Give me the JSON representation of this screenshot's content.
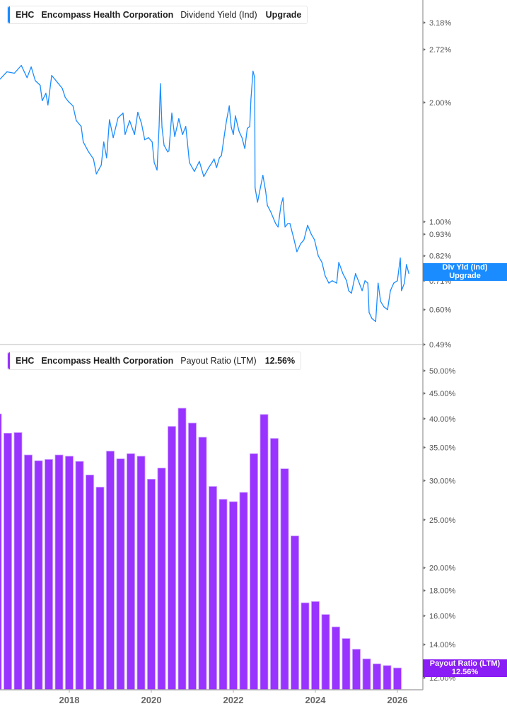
{
  "colors": {
    "dividend_yield": "#1a8cff",
    "payout_ratio": "#9933ff",
    "payout_tag": "#8a1cf5"
  },
  "top_legend": {
    "ticker": "EHC",
    "company": "Encompass Health Corporation",
    "metric": "Dividend Yield (Ind)",
    "value": "Upgrade"
  },
  "top_tag": {
    "line1": "Div Yld (Ind)",
    "line2": "Upgrade"
  },
  "bottom_legend": {
    "ticker": "EHC",
    "company": "Encompass Health Corporation",
    "metric": "Payout Ratio (LTM)",
    "value": "12.56%"
  },
  "bottom_tag": {
    "line1": "Payout Ratio (LTM)",
    "line2": "12.56%"
  },
  "chart_data": [
    {
      "type": "line",
      "series": [
        {
          "name": "Dividend Yield (Ind)",
          "x": [
            2016.31,
            2016.48,
            2016.66,
            2016.83,
            2016.97,
            2017.07,
            2017.17,
            2017.29,
            2017.34,
            2017.43,
            2017.48,
            2017.57,
            2017.72,
            2017.83,
            2017.9,
            2017.98,
            2018.09,
            2018.17,
            2018.29,
            2018.34,
            2018.47,
            2018.59,
            2018.66,
            2018.78,
            2018.84,
            2018.91,
            2018.98,
            2019.07,
            2019.19,
            2019.31,
            2019.36,
            2019.47,
            2019.59,
            2019.67,
            2019.76,
            2019.84,
            2019.93,
            2020.02,
            2020.07,
            2020.14,
            2020.19,
            2020.22,
            2020.26,
            2020.31,
            2020.4,
            2020.43,
            2020.5,
            2020.57,
            2020.67,
            2020.76,
            2020.84,
            2020.88,
            2020.93,
            2021.05,
            2021.17,
            2021.28,
            2021.4,
            2021.48,
            2021.53,
            2021.59,
            2021.66,
            2021.71,
            2021.78,
            2021.83,
            2021.9,
            2021.95,
            2022.0,
            2022.05,
            2022.14,
            2022.21,
            2022.28,
            2022.34,
            2022.4,
            2022.43,
            2022.48,
            2022.52,
            2022.53,
            2022.59,
            2022.66,
            2022.72,
            2022.79,
            2022.83,
            2022.91,
            2023.03,
            2023.09,
            2023.16,
            2023.21,
            2023.26,
            2023.33,
            2023.38,
            2023.47,
            2023.55,
            2023.64,
            2023.72,
            2023.81,
            2023.9,
            2023.98,
            2024.07,
            2024.16,
            2024.24,
            2024.33,
            2024.41,
            2024.52,
            2024.57,
            2024.67,
            2024.76,
            2024.81,
            2024.88,
            2024.98,
            2025.07,
            2025.14,
            2025.21,
            2025.28,
            2025.31,
            2025.38,
            2025.47,
            2025.53,
            2025.59,
            2025.67,
            2025.76,
            2025.83,
            2025.91,
            2026.0,
            2026.07,
            2026.1,
            2026.17,
            2026.22,
            2026.28
          ],
          "y": [
            2.29,
            2.39,
            2.37,
            2.48,
            2.31,
            2.46,
            2.27,
            2.21,
            2.02,
            2.11,
            1.97,
            2.34,
            2.24,
            2.17,
            2.06,
            2.01,
            1.96,
            1.8,
            1.74,
            1.59,
            1.5,
            1.44,
            1.32,
            1.39,
            1.59,
            1.45,
            1.81,
            1.63,
            1.83,
            1.88,
            1.66,
            1.8,
            1.66,
            1.89,
            1.77,
            1.61,
            1.63,
            1.59,
            1.41,
            1.35,
            1.74,
            2.23,
            1.73,
            1.56,
            1.5,
            1.51,
            1.88,
            1.64,
            1.82,
            1.66,
            1.74,
            1.59,
            1.41,
            1.34,
            1.42,
            1.3,
            1.37,
            1.41,
            1.44,
            1.37,
            1.45,
            1.47,
            1.65,
            1.79,
            1.96,
            1.73,
            1.66,
            1.85,
            1.69,
            1.63,
            1.53,
            1.72,
            1.74,
            2.04,
            2.4,
            2.31,
            1.22,
            1.12,
            1.22,
            1.31,
            1.19,
            1.1,
            1.06,
            0.99,
            0.97,
            1.1,
            1.15,
            0.97,
            0.99,
            0.99,
            0.91,
            0.84,
            0.88,
            0.9,
            0.98,
            0.93,
            0.9,
            0.82,
            0.79,
            0.73,
            0.7,
            0.71,
            0.7,
            0.79,
            0.74,
            0.71,
            0.67,
            0.66,
            0.74,
            0.7,
            0.67,
            0.71,
            0.7,
            0.59,
            0.57,
            0.56,
            0.7,
            0.63,
            0.61,
            0.6,
            0.67,
            0.7,
            0.71,
            0.81,
            0.67,
            0.7,
            0.78,
            0.74
          ]
        }
      ],
      "yscale": "log",
      "ylim": [
        0.49,
        3.18
      ],
      "yticks": [
        "3.18%",
        "2.72%",
        "2.00%",
        "1.00%",
        "0.93%",
        "0.82%",
        "0.71%",
        "0.60%",
        "0.49%"
      ],
      "ytick_values": [
        3.18,
        2.72,
        2.0,
        1.0,
        0.93,
        0.82,
        0.71,
        0.6,
        0.49
      ],
      "y_axis_side": "right",
      "grid": false
    },
    {
      "type": "bar",
      "series": [
        {
          "name": "Payout Ratio (LTM)",
          "x": [
            2016.25,
            2016.5,
            2016.75,
            2017.0,
            2017.25,
            2017.5,
            2017.75,
            2018.0,
            2018.25,
            2018.5,
            2018.75,
            2019.0,
            2019.25,
            2019.5,
            2019.75,
            2020.0,
            2020.25,
            2020.5,
            2020.75,
            2021.0,
            2021.25,
            2021.5,
            2021.75,
            2022.0,
            2022.25,
            2022.5,
            2022.75,
            2023.0,
            2023.25,
            2023.5,
            2023.75,
            2024.0,
            2024.25,
            2024.5,
            2024.75,
            2025.0,
            2025.25,
            2025.5,
            2025.75,
            2026.0
          ],
          "values": [
            40.9,
            37.4,
            37.5,
            33.8,
            32.9,
            33.1,
            33.8,
            33.6,
            32.8,
            30.8,
            29.1,
            34.4,
            33.2,
            34.0,
            33.6,
            30.2,
            31.8,
            38.6,
            42.0,
            39.2,
            36.7,
            29.2,
            27.5,
            27.2,
            28.4,
            34.0,
            40.8,
            36.5,
            31.7,
            23.2,
            17.0,
            17.1,
            16.1,
            15.2,
            14.4,
            13.7,
            13.1,
            12.8,
            12.7,
            12.56
          ]
        }
      ],
      "yscale": "log",
      "ylim": [
        12,
        50
      ],
      "yticks": [
        "50.00%",
        "45.00%",
        "40.00%",
        "35.00%",
        "30.00%",
        "25.00%",
        "20.00%",
        "18.00%",
        "16.00%",
        "14.00%",
        "12.00%"
      ],
      "ytick_values": [
        50,
        45,
        40,
        35,
        30,
        25,
        20,
        18,
        16,
        14,
        12
      ],
      "y_axis_side": "right",
      "grid": false
    }
  ],
  "x_axis": {
    "ticks": [
      "2018",
      "2020",
      "2022",
      "2024",
      "2026"
    ],
    "tick_values": [
      2018,
      2020,
      2022,
      2024,
      2026
    ]
  }
}
